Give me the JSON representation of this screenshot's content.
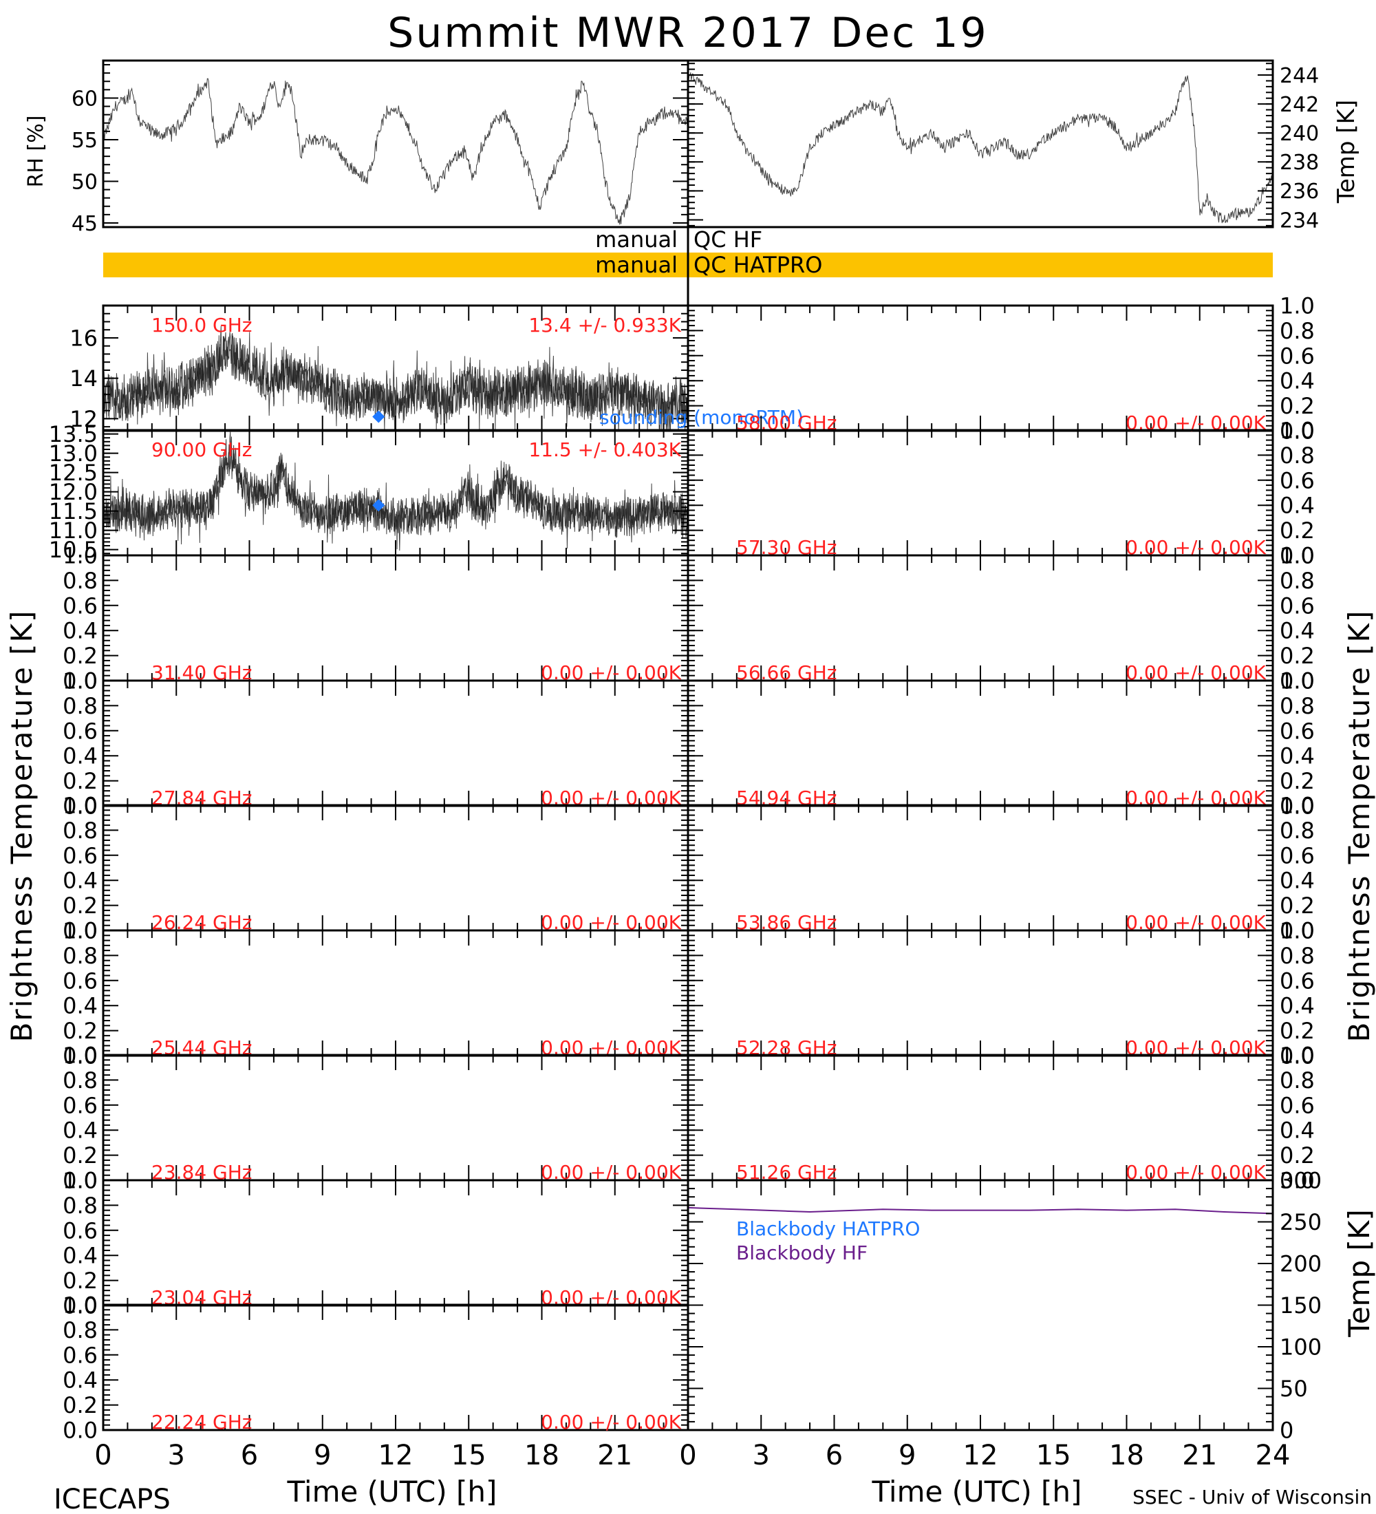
{
  "title": "Summit MWR 2017 Dec 19",
  "footer": {
    "left": "ICECAPS",
    "right": "SSEC - Univ of Wisconsin",
    "xlabel_left": "Time (UTC) [h]",
    "xlabel_right": "Time (UTC) [h]"
  },
  "qc": {
    "hf_label_left": "manual",
    "hf_label_right": "QC HF",
    "hatpro_label_left": "manual",
    "hatpro_label_right": "QC HATPRO",
    "hatpro_color": "#fcc200"
  },
  "colors": {
    "annotation": "#ff2020",
    "sounding": "#1e78ff",
    "blackbody_hf": "#6a1e8c",
    "trace": "#202020"
  },
  "chart_data": [
    {
      "type": "line",
      "panel": "rh",
      "ylabel": "RH [%]",
      "ylim": [
        44.5,
        64.5
      ],
      "yticks": [
        45,
        50,
        55,
        60
      ],
      "xlim": [
        0,
        24
      ],
      "x": [
        0,
        0.5,
        1,
        1.2,
        1.4,
        1.6,
        2,
        2.3,
        2.8,
        3.2,
        3.6,
        4,
        4.3,
        4.6,
        4.7,
        4.9,
        5.3,
        5.6,
        6,
        6.5,
        6.8,
        7,
        7.2,
        7.6,
        7.8,
        8.1,
        8.4,
        9,
        9.6,
        10,
        10.5,
        10.8,
        11.1,
        11.3,
        11.6,
        12,
        12.2,
        12.6,
        13.1,
        13.6,
        14,
        14.5,
        14.8,
        15.2,
        15.5,
        16,
        16.5,
        17,
        17.5,
        17.9,
        18.3,
        18.6,
        19,
        19.3,
        19.7,
        20,
        20.3,
        20.6,
        20.9,
        21.2,
        21.6,
        22,
        22.5,
        23,
        23.5,
        24
      ],
      "values": [
        55,
        59,
        60,
        61,
        58,
        57,
        56,
        55.5,
        56,
        57,
        59,
        61,
        62,
        55,
        54.5,
        55,
        56,
        59,
        57,
        58,
        61,
        62,
        59,
        62,
        60,
        53,
        55,
        55,
        54,
        52,
        51,
        50,
        53,
        56,
        58,
        59,
        58,
        56,
        52,
        49,
        51,
        53,
        54,
        50,
        54,
        57,
        58,
        55,
        51,
        47,
        50,
        52,
        54,
        59,
        62,
        58,
        56,
        50,
        47,
        45,
        48,
        56,
        57,
        58,
        58,
        57
      ]
    },
    {
      "type": "line",
      "panel": "temp",
      "ylabel": "Temp [K]",
      "ylim": [
        233.5,
        245
      ],
      "yticks": [
        234,
        236,
        238,
        240,
        242,
        244
      ],
      "xlim": [
        0,
        24
      ],
      "x": [
        0,
        0.4,
        0.8,
        1.2,
        1.6,
        2,
        2.5,
        3,
        3.5,
        4,
        4.5,
        5,
        5.5,
        6,
        6.5,
        7,
        7.5,
        8,
        8.3,
        8.6,
        9,
        9.5,
        10,
        10.5,
        11,
        11.5,
        12,
        12.5,
        13,
        13.5,
        14,
        14.5,
        15,
        15.5,
        16,
        16.5,
        17,
        17.5,
        18,
        18.5,
        19,
        19.5,
        20,
        20.2,
        20.5,
        20.8,
        21,
        21.3,
        21.6,
        22,
        22.5,
        23,
        23.5,
        24
      ],
      "values": [
        244,
        243.5,
        243,
        242.5,
        242,
        240,
        238.5,
        237.5,
        236.5,
        236,
        236.2,
        239,
        240,
        240.5,
        241,
        241.5,
        242,
        241.5,
        242.5,
        240,
        239,
        239.5,
        240,
        239,
        239.5,
        240,
        238.5,
        239,
        239.5,
        238.5,
        238.5,
        239.5,
        240,
        240.5,
        241,
        241,
        241,
        240.5,
        239,
        239.5,
        240,
        240.5,
        241.5,
        243,
        244,
        240,
        234.5,
        235.5,
        234.5,
        234,
        234.5,
        234.5,
        235.5,
        237
      ]
    },
    {
      "type": "line",
      "panel": "tb-150",
      "frequency_label": "150.0 GHz",
      "stats_label": "13.4 +/- 0.933K",
      "ylim": [
        11.4,
        17.6
      ],
      "yticks": [
        12,
        14,
        16
      ],
      "mean": 13.4,
      "std": 0.933,
      "sounding_label": "sounding (monoRTM)",
      "sounding_point": {
        "x": 11.3,
        "y": 12.1
      },
      "x": [
        0,
        1,
        2,
        3,
        4,
        4.5,
        5,
        5.5,
        6,
        6.5,
        7,
        7.5,
        8,
        9,
        10,
        11,
        12,
        13,
        14,
        15,
        16,
        17,
        18,
        19,
        20,
        21,
        22,
        23,
        24
      ],
      "values": [
        13.2,
        13.0,
        13.4,
        13.6,
        14.0,
        14.4,
        15.5,
        15.0,
        14.6,
        14.2,
        13.8,
        14.6,
        14.2,
        13.6,
        13.0,
        13.2,
        12.8,
        13.4,
        12.8,
        13.6,
        13.2,
        13.4,
        13.8,
        13.4,
        13.0,
        13.4,
        13.0,
        12.6,
        12.8
      ]
    },
    {
      "type": "line",
      "panel": "tb-90",
      "frequency_label": "90.00 GHz",
      "stats_label": "11.5 +/- 0.403K",
      "ylim": [
        10.35,
        13.6
      ],
      "yticks": [
        10.5,
        11.0,
        11.5,
        12.0,
        12.5,
        13.0,
        13.5
      ],
      "mean": 11.5,
      "std": 0.403,
      "sounding_point": {
        "x": 11.3,
        "y": 11.65
      },
      "x": [
        0,
        1,
        2,
        3,
        4,
        4.5,
        5,
        5.3,
        5.6,
        6,
        6.5,
        7,
        7.3,
        7.6,
        8,
        9,
        10,
        11,
        12,
        13,
        14,
        14.5,
        15,
        15.5,
        16,
        16.5,
        17,
        18,
        19,
        20,
        21,
        22,
        23,
        24
      ],
      "values": [
        11.4,
        11.5,
        11.4,
        11.6,
        11.5,
        11.8,
        12.8,
        13.0,
        12.3,
        12.0,
        11.9,
        12.0,
        12.6,
        12.1,
        11.6,
        11.4,
        11.5,
        11.6,
        11.3,
        11.4,
        11.5,
        11.6,
        12.0,
        11.6,
        11.8,
        12.4,
        11.9,
        11.6,
        11.4,
        11.5,
        11.3,
        11.4,
        11.5,
        11.3
      ]
    },
    {
      "type": "line",
      "panel": "tb-58.00",
      "frequency_label": "58.00 GHz",
      "stats_label": "0.00 +/- 0.00K",
      "ylim": [
        0,
        1
      ],
      "yticks": [
        0.0,
        0.2,
        0.4,
        0.6,
        0.8,
        1.0
      ],
      "values": []
    },
    {
      "type": "line",
      "panel": "tb-57.30",
      "frequency_label": "57.30 GHz",
      "stats_label": "0.00 +/- 0.00K",
      "ylim": [
        0,
        1
      ],
      "yticks": [
        0.0,
        0.2,
        0.4,
        0.6,
        0.8,
        1.0
      ],
      "values": []
    },
    {
      "type": "line",
      "panel": "tb-31.40",
      "frequency_label": "31.40 GHz",
      "stats_label": "0.00 +/- 0.00K",
      "ylim": [
        0,
        1
      ],
      "yticks": [
        0.0,
        0.2,
        0.4,
        0.6,
        0.8,
        1.0
      ],
      "values": []
    },
    {
      "type": "line",
      "panel": "tb-56.66",
      "frequency_label": "56.66 GHz",
      "stats_label": "0.00 +/- 0.00K",
      "ylim": [
        0,
        1
      ],
      "yticks": [
        0.0,
        0.2,
        0.4,
        0.6,
        0.8,
        1.0
      ],
      "values": []
    },
    {
      "type": "line",
      "panel": "tb-27.84",
      "frequency_label": "27.84 GHz",
      "stats_label": "0.00 +/- 0.00K",
      "ylim": [
        0,
        1
      ],
      "yticks": [
        0.0,
        0.2,
        0.4,
        0.6,
        0.8,
        1.0
      ],
      "values": []
    },
    {
      "type": "line",
      "panel": "tb-54.94",
      "frequency_label": "54.94 GHz",
      "stats_label": "0.00 +/- 0.00K",
      "ylim": [
        0,
        1
      ],
      "yticks": [
        0.0,
        0.2,
        0.4,
        0.6,
        0.8,
        1.0
      ],
      "values": []
    },
    {
      "type": "line",
      "panel": "tb-26.24",
      "frequency_label": "26.24 GHz",
      "stats_label": "0.00 +/- 0.00K",
      "ylim": [
        0,
        1
      ],
      "yticks": [
        0.0,
        0.2,
        0.4,
        0.6,
        0.8,
        1.0
      ],
      "values": []
    },
    {
      "type": "line",
      "panel": "tb-53.86",
      "frequency_label": "53.86 GHz",
      "stats_label": "0.00 +/- 0.00K",
      "ylim": [
        0,
        1
      ],
      "yticks": [
        0.0,
        0.2,
        0.4,
        0.6,
        0.8,
        1.0
      ],
      "values": []
    },
    {
      "type": "line",
      "panel": "tb-25.44",
      "frequency_label": "25.44 GHz",
      "stats_label": "0.00 +/- 0.00K",
      "ylim": [
        0,
        1
      ],
      "yticks": [
        0.0,
        0.2,
        0.4,
        0.6,
        0.8,
        1.0
      ],
      "values": []
    },
    {
      "type": "line",
      "panel": "tb-52.28",
      "frequency_label": "52.28 GHz",
      "stats_label": "0.00 +/- 0.00K",
      "ylim": [
        0,
        1
      ],
      "yticks": [
        0.0,
        0.2,
        0.4,
        0.6,
        0.8,
        1.0
      ],
      "values": []
    },
    {
      "type": "line",
      "panel": "tb-23.84",
      "frequency_label": "23.84 GHz",
      "stats_label": "0.00 +/- 0.00K",
      "ylim": [
        0,
        1
      ],
      "yticks": [
        0.0,
        0.2,
        0.4,
        0.6,
        0.8,
        1.0
      ],
      "values": []
    },
    {
      "type": "line",
      "panel": "tb-51.26",
      "frequency_label": "51.26 GHz",
      "stats_label": "0.00 +/- 0.00K",
      "ylim": [
        0,
        1
      ],
      "yticks": [
        0.0,
        0.2,
        0.4,
        0.6,
        0.8,
        1.0
      ],
      "values": []
    },
    {
      "type": "line",
      "panel": "tb-23.04",
      "frequency_label": "23.04 GHz",
      "stats_label": "0.00 +/- 0.00K",
      "ylim": [
        0,
        1
      ],
      "yticks": [
        0.0,
        0.2,
        0.4,
        0.6,
        0.8,
        1.0
      ],
      "values": []
    },
    {
      "type": "line",
      "panel": "tb-22.24",
      "frequency_label": "22.24 GHz",
      "stats_label": "0.00 +/- 0.00K",
      "ylim": [
        0,
        1
      ],
      "yticks": [
        0.0,
        0.2,
        0.4,
        0.6,
        0.8,
        1.0
      ],
      "values": []
    },
    {
      "type": "line",
      "panel": "blackbody",
      "ylabel": "Temp [K]",
      "ylim": [
        0,
        300
      ],
      "yticks": [
        0,
        50,
        100,
        150,
        200,
        250,
        300
      ],
      "xlim": [
        0,
        24
      ],
      "legend": [
        "Blackbody HATPRO",
        "Blackbody HF"
      ],
      "series": [
        {
          "name": "Blackbody HATPRO",
          "x": [
            0,
            24
          ],
          "values": [
            0,
            0
          ]
        },
        {
          "name": "Blackbody HF",
          "x": [
            0,
            2,
            4,
            5,
            6,
            8,
            10,
            12,
            14,
            16,
            18,
            20,
            22,
            24
          ],
          "values": [
            267,
            265,
            263,
            262,
            263,
            265,
            264,
            264,
            264,
            265,
            264,
            265,
            262,
            260
          ]
        }
      ]
    }
  ],
  "axes": {
    "tb_ylabel_left": "Brightness Temperature [K]",
    "tb_ylabel_right": "Brightness Temperature [K]",
    "x_ticks_left": [
      "0",
      "3",
      "6",
      "9",
      "12",
      "15",
      "18",
      "21"
    ],
    "x_ticks_right": [
      "0",
      "3",
      "6",
      "9",
      "12",
      "15",
      "18",
      "21",
      "24"
    ]
  }
}
